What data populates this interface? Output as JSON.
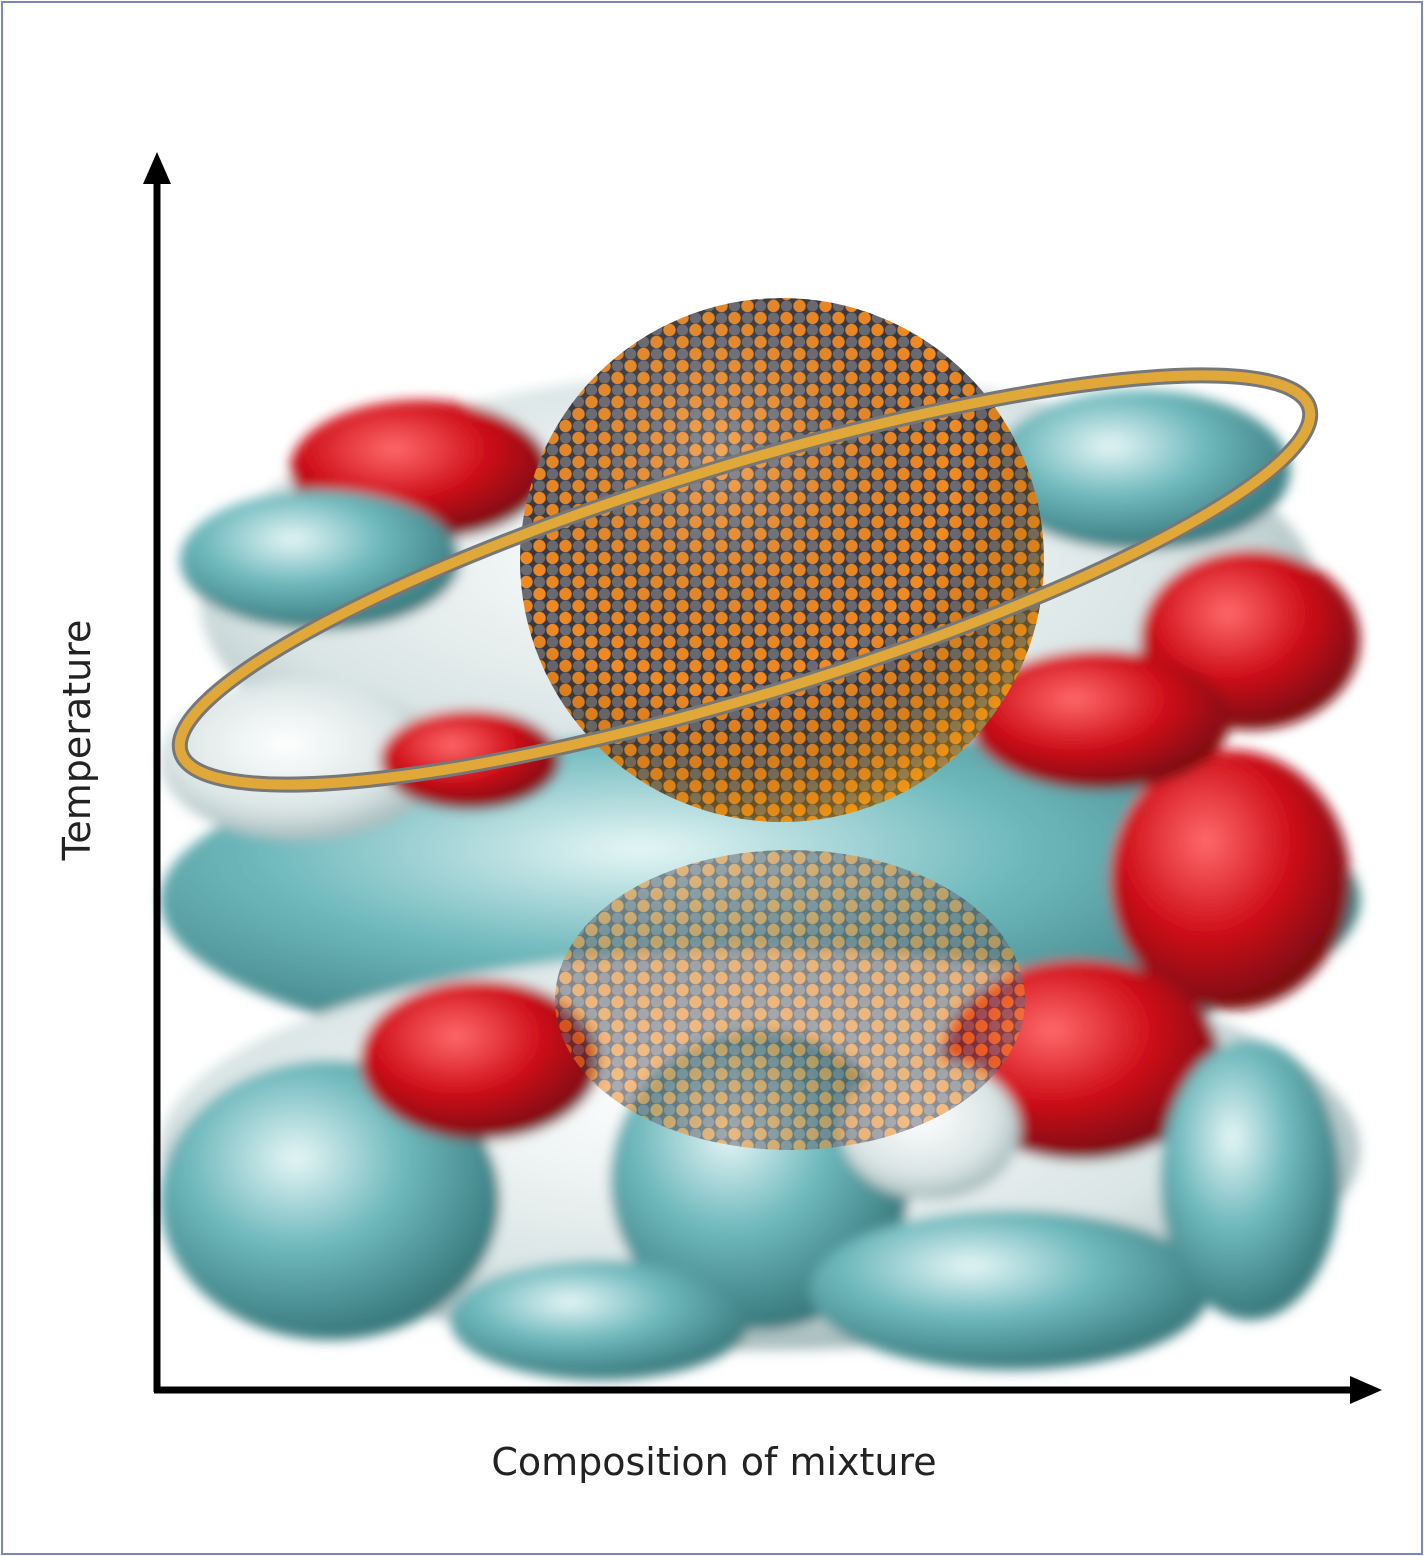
{
  "axes": {
    "y_label": "Temperature",
    "x_label": "Composition of mixture"
  }
}
